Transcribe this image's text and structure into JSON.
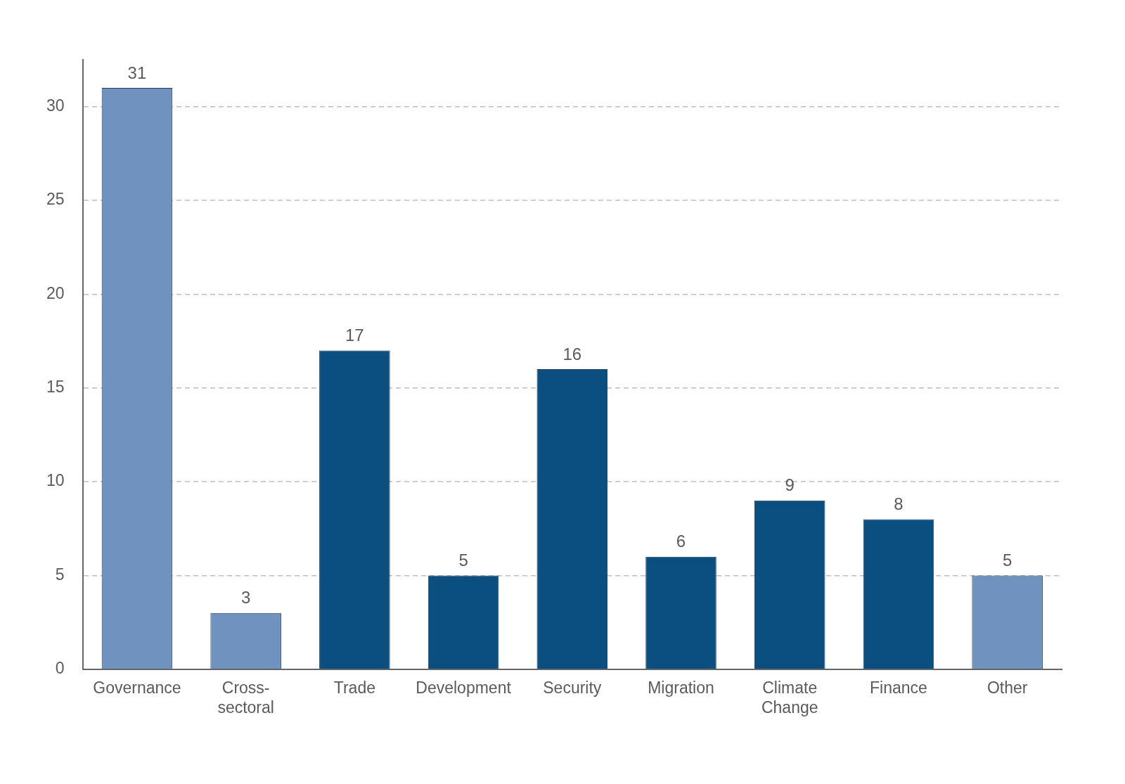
{
  "chart_data": {
    "type": "bar",
    "categories": [
      "Governance",
      "Cross-sectoral",
      "Trade",
      "Development",
      "Security",
      "Migration",
      "Climate Change",
      "Finance",
      "Other"
    ],
    "values": [
      31,
      3,
      17,
      5,
      16,
      6,
      9,
      8,
      5
    ],
    "colors": [
      "#7092be",
      "#7092be",
      "#0b4f81",
      "#0b4f81",
      "#0b4f81",
      "#0b4f81",
      "#0b4f81",
      "#0b4f81",
      "#7092be"
    ],
    "ylim": [
      0,
      32.5
    ],
    "yticks": [
      0,
      5,
      10,
      15,
      20,
      25,
      30
    ],
    "grid": true,
    "data_labels": true
  }
}
